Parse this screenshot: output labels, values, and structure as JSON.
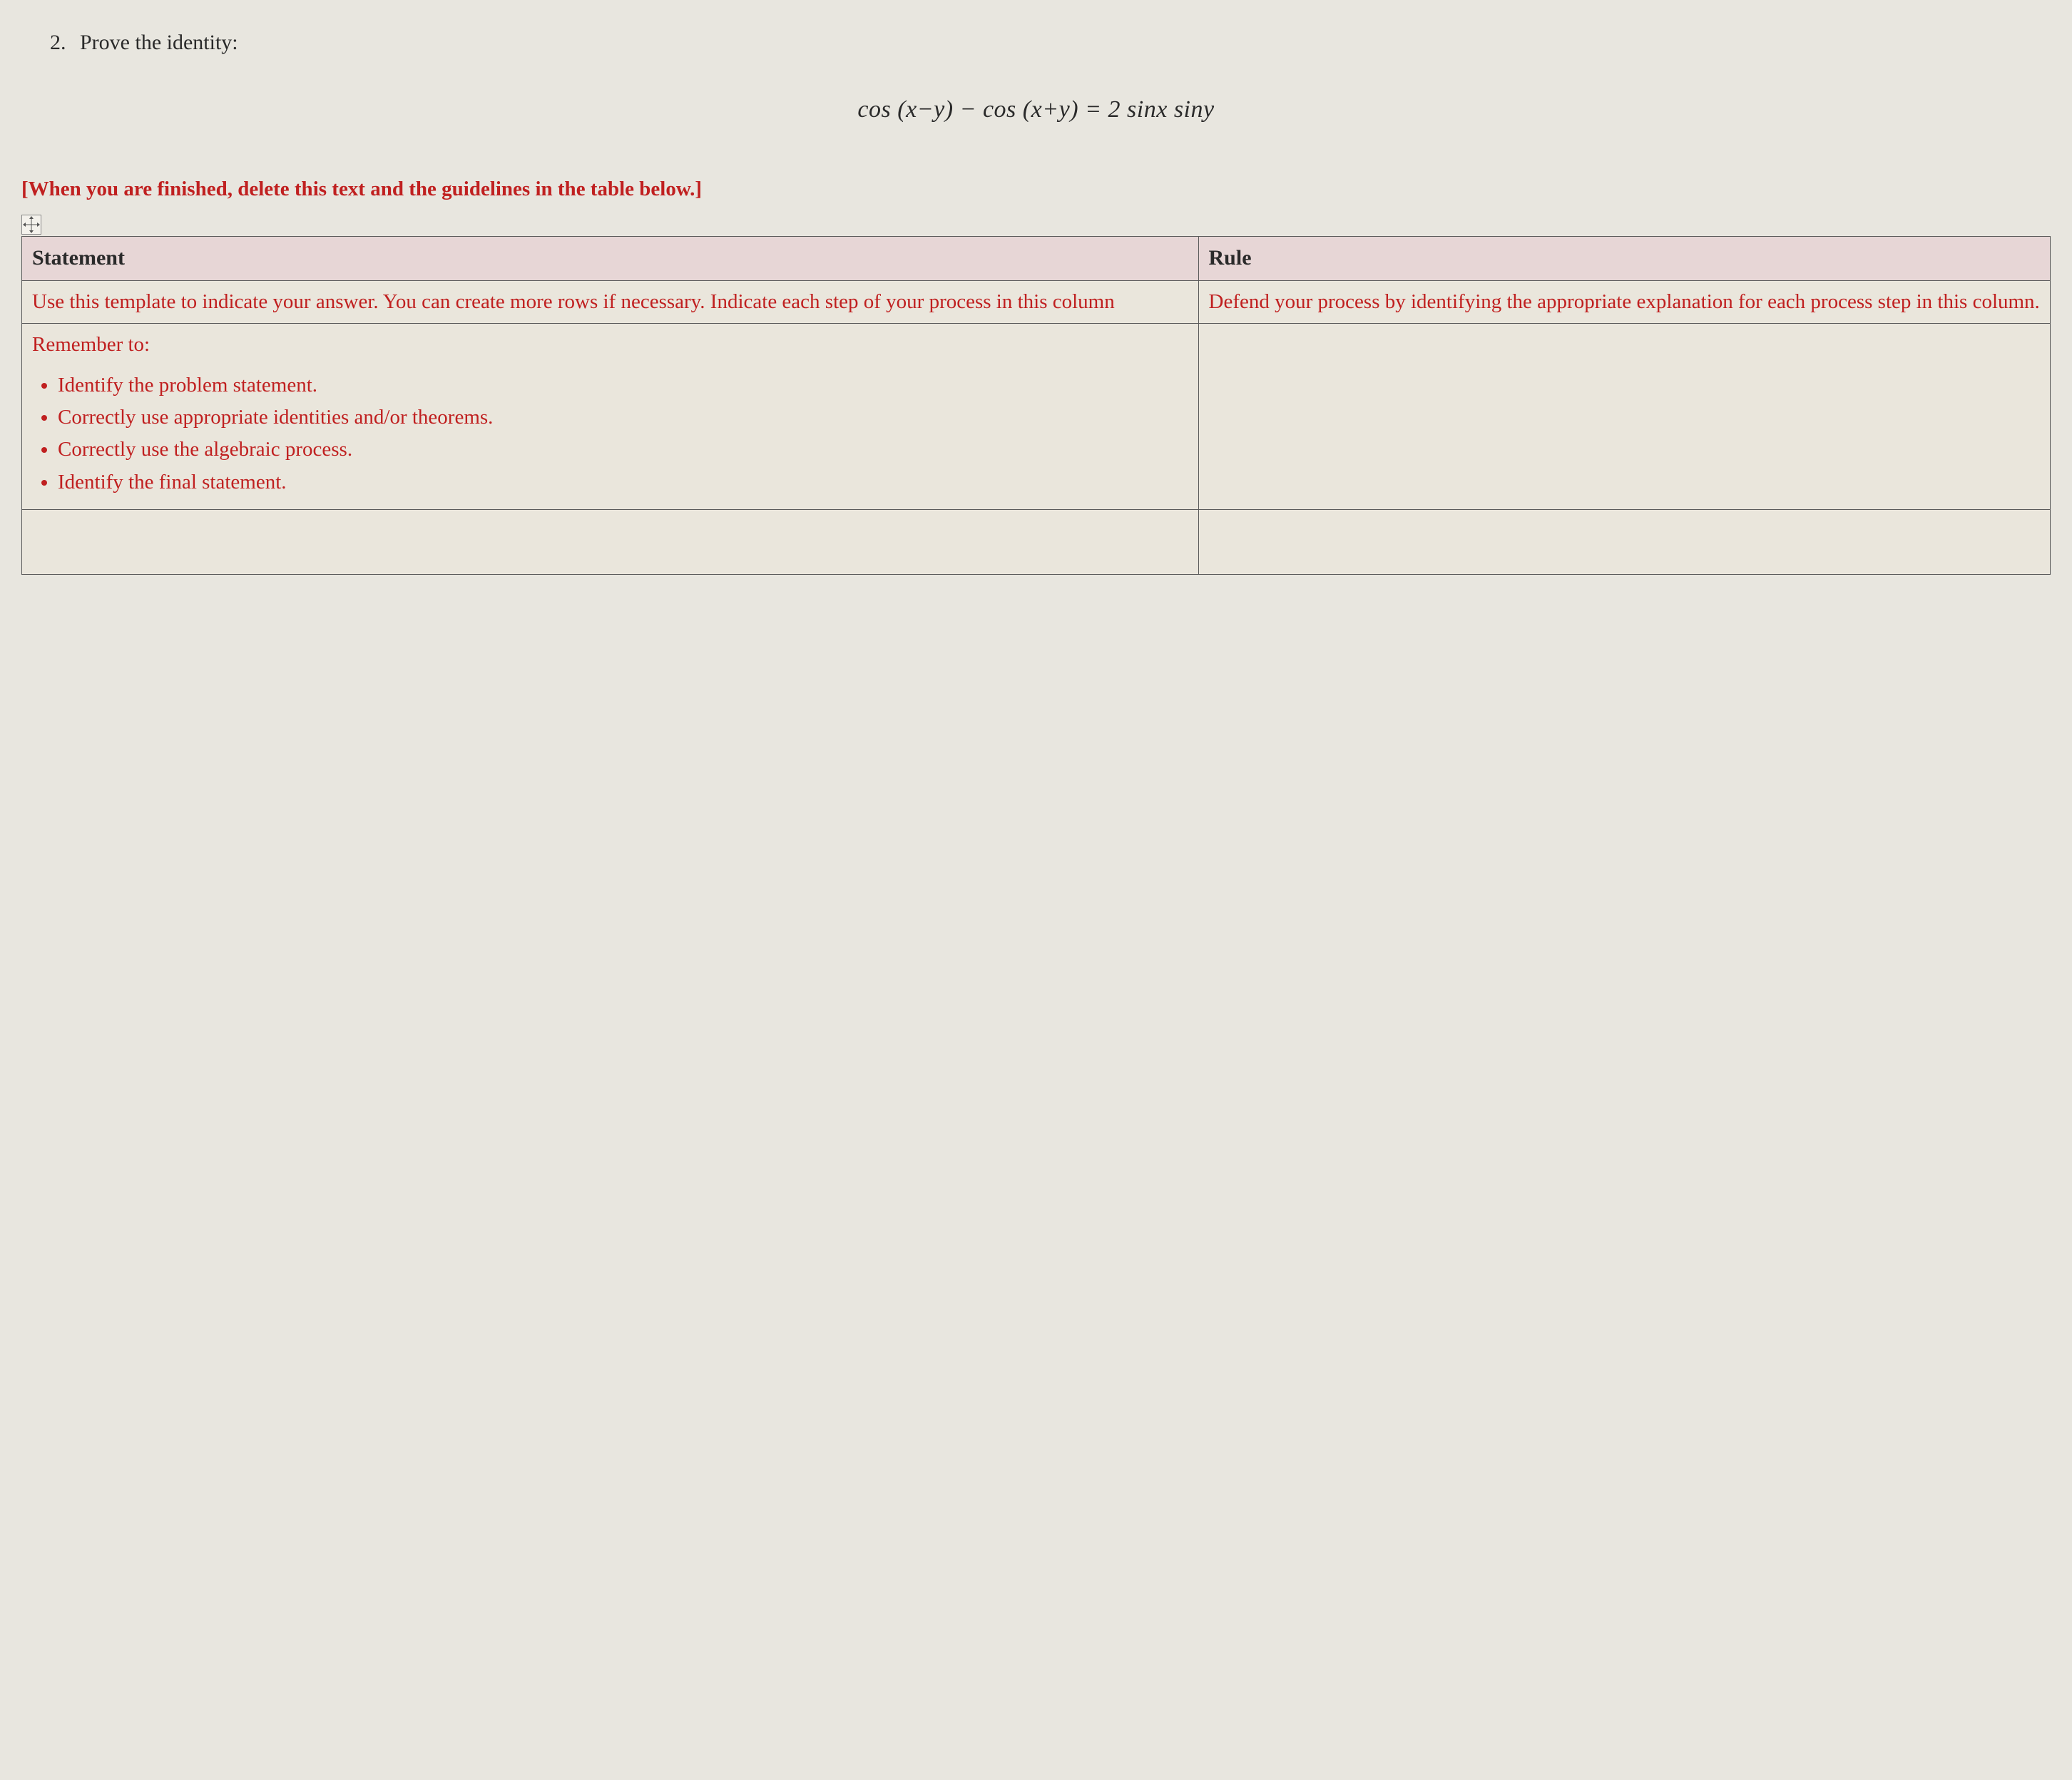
{
  "problem": {
    "number": "2.",
    "prompt": "Prove the identity:",
    "equation_html": "cos (<i>x</i>−<i>y</i>) − cos (<i>x</i>+<i>y</i>) = 2 sin<i>x</i> sin<i>y</i>"
  },
  "delete_note": "[When you are finished, delete this text and the guidelines in the table below.]",
  "table": {
    "columns": [
      "Statement",
      "Rule"
    ],
    "column_widths_pct": [
      58,
      42
    ],
    "header_bg": "#e7d6d6",
    "border_color": "#5a5a5a",
    "instruction_color": "#c02020",
    "rows": [
      {
        "statement": "Use this template to indicate your answer. You can create more rows if necessary. Indicate each step of your process in this column",
        "rule": "Defend your process by identifying the appropriate explanation for each process step in this column."
      },
      {
        "statement_intro": "Remember to:",
        "statement_bullets": [
          "Identify the problem statement.",
          "Correctly use appropriate identities and/or theorems.",
          "Correctly use the algebraic process.",
          "Identify the final statement."
        ],
        "rule": ""
      },
      {
        "statement": "",
        "rule": ""
      }
    ]
  },
  "colors": {
    "page_bg": "#e8e6df",
    "text": "#2a2a2a",
    "warning": "#c02020"
  },
  "typography": {
    "font_family": "Times New Roman",
    "body_fontsize_pt": 21,
    "header_fontsize_pt": 22,
    "equation_fontsize_pt": 25
  }
}
